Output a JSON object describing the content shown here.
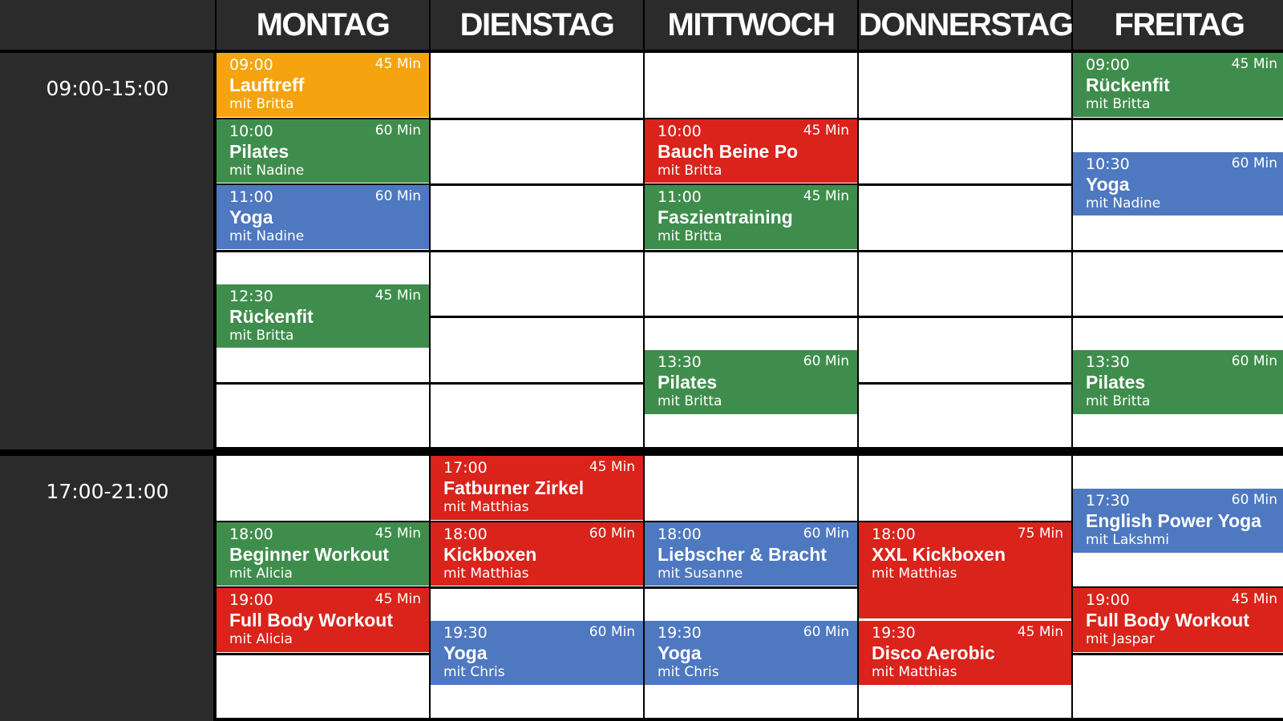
{
  "header": {
    "days": [
      "MONTAG",
      "DIENSTAG",
      "MITTWOCH",
      "DONNERSTAG",
      "FREITAG"
    ]
  },
  "time_blocks": [
    "09:00-15:00",
    "17:00-21:00"
  ],
  "columns": [
    {
      "classes": [
        {
          "time": "09:00",
          "duration": "45 Min",
          "name": "Lauftreff",
          "trainer": "mit Britta",
          "color": "#f5a30f"
        },
        {
          "time": "10:00",
          "duration": "60 Min",
          "name": "Pilates",
          "trainer": "mit Nadine",
          "color": "#3f8d4c"
        },
        {
          "time": "11:00",
          "duration": "60 Min",
          "name": "Yoga",
          "trainer": "mit Nadine",
          "color": "#4e78bf"
        },
        {
          "time": "12:30",
          "duration": "45 Min",
          "name": "Rückenfit",
          "trainer": "mit Britta",
          "color": "#3f8d4c"
        },
        {
          "time": "18:00",
          "duration": "45 Min",
          "name": "Beginner Workout",
          "trainer": "mit Alicia",
          "color": "#3f8d4c"
        },
        {
          "time": "19:00",
          "duration": "45 Min",
          "name": "Full Body Workout",
          "trainer": "mit Alicia",
          "color": "#d9231b"
        }
      ]
    },
    {
      "classes": [
        {
          "time": "17:00",
          "duration": "45 Min",
          "name": "Fatburner Zirkel",
          "trainer": "mit Matthias",
          "color": "#d9231b"
        },
        {
          "time": "18:00",
          "duration": "60 Min",
          "name": "Kickboxen",
          "trainer": "mit Matthias",
          "color": "#d9231b"
        },
        {
          "time": "19:30",
          "duration": "60 Min",
          "name": "Yoga",
          "trainer": "mit Chris",
          "color": "#4e78bf"
        }
      ]
    },
    {
      "classes": [
        {
          "time": "10:00",
          "duration": "45 Min",
          "name": "Bauch Beine Po",
          "trainer": "mit Britta",
          "color": "#d9231b"
        },
        {
          "time": "11:00",
          "duration": "45 Min",
          "name": "Faszientraining",
          "trainer": "mit Britta",
          "color": "#3f8d4c"
        },
        {
          "time": "13:30",
          "duration": "60 Min",
          "name": "Pilates",
          "trainer": "mit Britta",
          "color": "#3f8d4c"
        },
        {
          "time": "18:00",
          "duration": "60 Min",
          "name": "Liebscher & Bracht",
          "trainer": "mit Susanne",
          "color": "#4e78bf"
        },
        {
          "time": "19:30",
          "duration": "60 Min",
          "name": "Yoga",
          "trainer": "mit Chris",
          "color": "#4e78bf"
        }
      ]
    },
    {
      "classes": [
        {
          "time": "18:00",
          "duration": "75 Min",
          "name": "XXL Kickboxen",
          "trainer": "mit Matthias",
          "color": "#d9231b"
        },
        {
          "time": "19:30",
          "duration": "45 Min",
          "name": "Disco Aerobic",
          "trainer": "mit Matthias",
          "color": "#d9231b"
        }
      ]
    },
    {
      "classes": [
        {
          "time": "09:00",
          "duration": "45 Min",
          "name": "Rückenfit",
          "trainer": "mit Britta",
          "color": "#3f8d4c"
        },
        {
          "time": "10:30",
          "duration": "60 Min",
          "name": "Yoga",
          "trainer": "mit Nadine",
          "color": "#4e78bf"
        },
        {
          "time": "13:30",
          "duration": "60 Min",
          "name": "Pilates",
          "trainer": "mit Britta",
          "color": "#3f8d4c"
        },
        {
          "time": "17:30",
          "duration": "60 Min",
          "name": "English Power Yoga",
          "trainer": "mit Lakshmi",
          "color": "#4e78bf"
        },
        {
          "time": "19:00",
          "duration": "45 Min",
          "name": "Full Body Workout",
          "trainer": "mit Jaspar",
          "color": "#d9231b"
        }
      ]
    }
  ]
}
